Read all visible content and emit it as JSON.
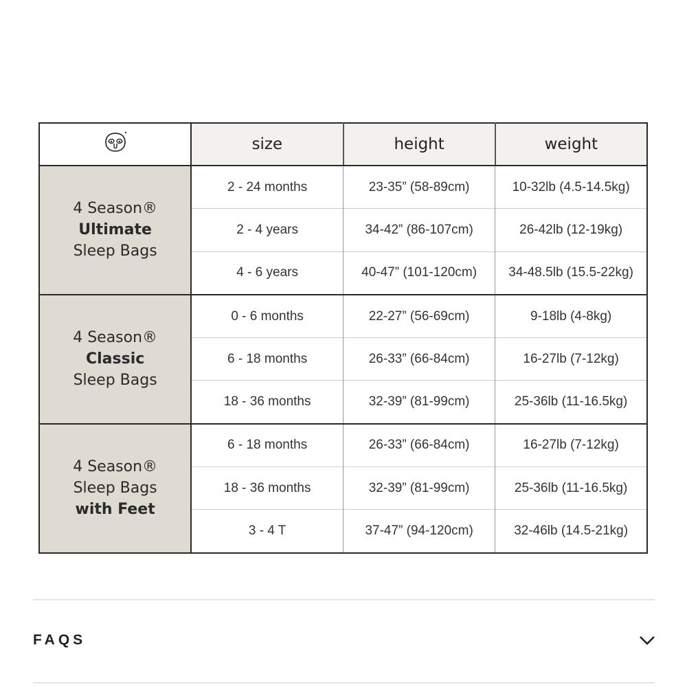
{
  "table": {
    "headers": [
      "size",
      "height",
      "weight"
    ],
    "logo_icon": "sloth-face-icon",
    "groups": [
      {
        "line1": "4 Season®",
        "line2": "Ultimate",
        "line3": "Sleep Bags",
        "bold_line": 2,
        "rows": [
          {
            "size": "2 - 24 months",
            "height": "23-35” (58-89cm)",
            "weight": "10-32lb (4.5-14.5kg)"
          },
          {
            "size": "2 - 4 years",
            "height": "34-42” (86-107cm)",
            "weight": "26-42lb (12-19kg)"
          },
          {
            "size": "4 - 6 years",
            "height": "40-47” (101-120cm)",
            "weight": "34-48.5lb (15.5-22kg)"
          }
        ]
      },
      {
        "line1": "4 Season®",
        "line2": "Classic",
        "line3": "Sleep Bags",
        "bold_line": 2,
        "rows": [
          {
            "size": "0 - 6 months",
            "height": "22-27” (56-69cm)",
            "weight": "9-18lb (4-8kg)"
          },
          {
            "size": "6 - 18 months",
            "height": "26-33” (66-84cm)",
            "weight": "16-27lb (7-12kg)"
          },
          {
            "size": "18 - 36 months",
            "height": "32-39” (81-99cm)",
            "weight": "25-36lb (11-16.5kg)"
          }
        ]
      },
      {
        "line1": "4 Season®",
        "line2": "Sleep Bags",
        "line3": "with Feet",
        "bold_line": 3,
        "rows": [
          {
            "size": "6 - 18 months",
            "height": "26-33” (66-84cm)",
            "weight": "16-27lb (7-12kg)"
          },
          {
            "size": "18 - 36 months",
            "height": "32-39” (81-99cm)",
            "weight": "25-36lb (11-16.5kg)"
          },
          {
            "size": "3 - 4 T",
            "height": "37-47” (94-120cm)",
            "weight": "32-46lb (14.5-21kg)"
          }
        ]
      }
    ]
  },
  "faq": {
    "label": "FAQS",
    "icon": "chevron-down-icon"
  },
  "colors": {
    "group_bg": "#e0dbd2",
    "header_bg": "#f2f1ee",
    "border": "#2a2a2a"
  }
}
